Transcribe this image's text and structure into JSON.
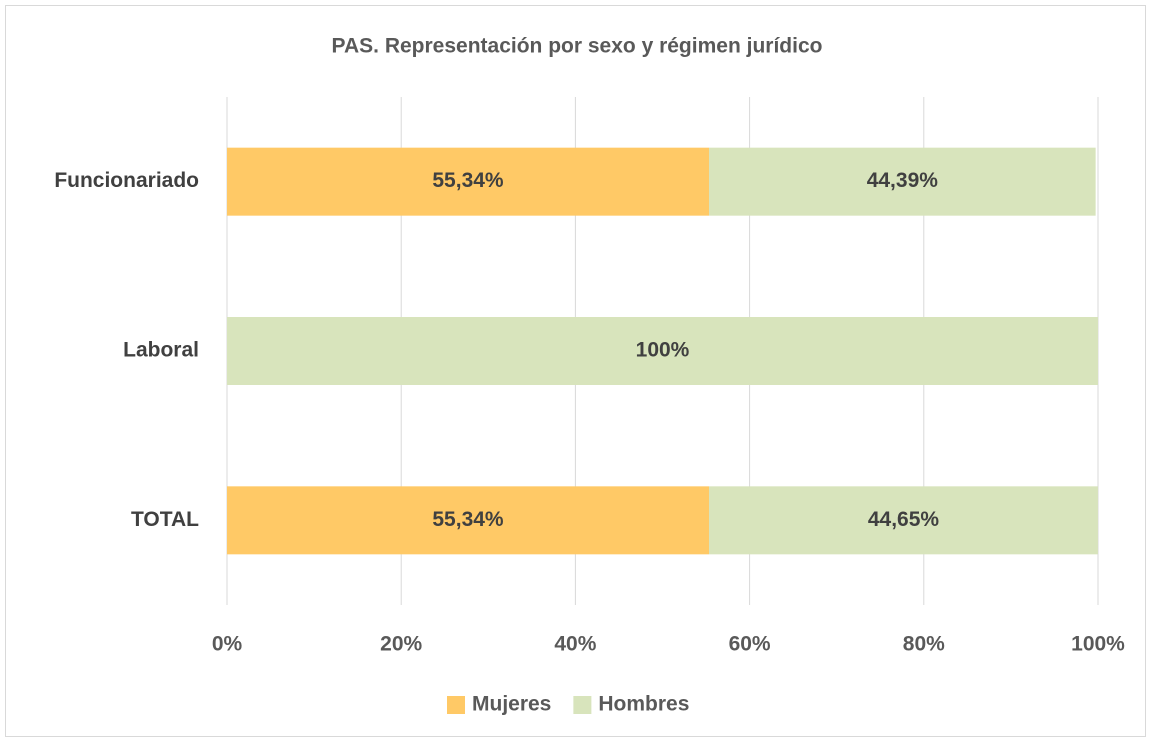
{
  "chart_data": {
    "type": "stacked-barh",
    "title": "PAS. Representación por sexo y régimen jurídico",
    "categories": [
      "Funcionariado",
      "Laboral",
      "TOTAL"
    ],
    "series": [
      {
        "name": "Mujeres",
        "color": "#ffc966",
        "values": [
          55.34,
          0,
          55.34
        ],
        "value_labels": [
          "55,34%",
          null,
          "55,34%"
        ]
      },
      {
        "name": "Hombres",
        "color": "#d8e4bc",
        "values": [
          44.39,
          100,
          44.65
        ],
        "value_labels": [
          "44,39%",
          "100%",
          "44,65%"
        ]
      }
    ],
    "xlim": [
      0,
      100
    ],
    "xticks": [
      {
        "value": 0,
        "label": "0%"
      },
      {
        "value": 20,
        "label": "20%"
      },
      {
        "value": 40,
        "label": "40%"
      },
      {
        "value": 60,
        "label": "60%"
      },
      {
        "value": 80,
        "label": "80%"
      },
      {
        "value": 100,
        "label": "100%"
      }
    ],
    "grid": true,
    "legend": "bottom"
  }
}
